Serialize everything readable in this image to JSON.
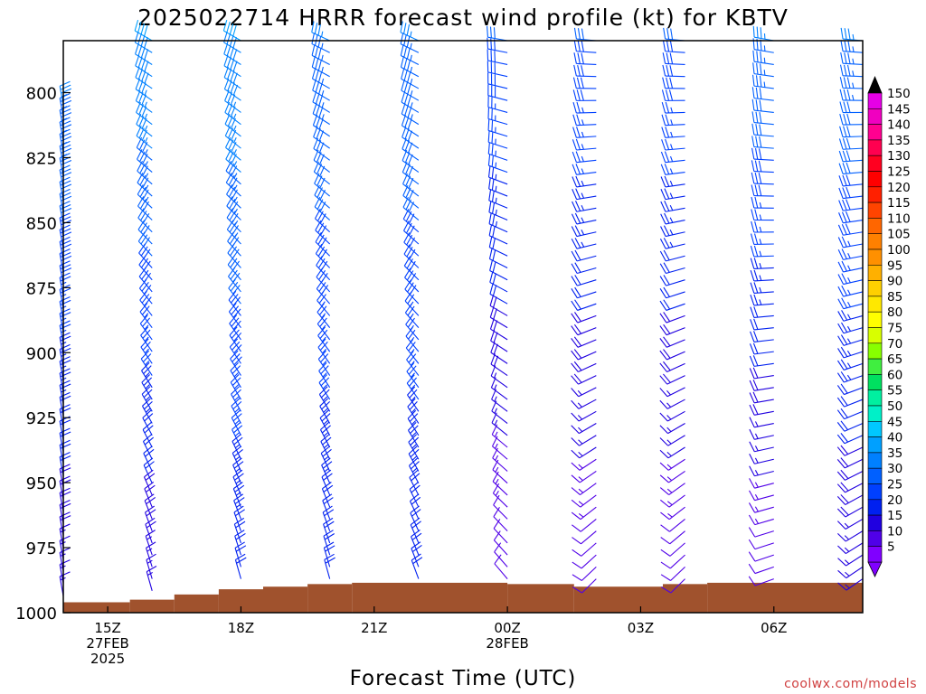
{
  "chart_data": {
    "type": "wind_barb_profile",
    "title": "2025022714 HRRR forecast wind profile (kt) for KBTV",
    "xlabel": "Forecast Time (UTC)",
    "ylabel": "",
    "credit": "coolwx.com/models",
    "y_axis": {
      "min": 780,
      "max": 1000,
      "ticks": [
        800,
        825,
        850,
        875,
        900,
        925,
        950,
        975,
        1000
      ],
      "reversed": true
    },
    "x_axis": {
      "start_hour": 14,
      "end_hour": 32,
      "ticks": [
        {
          "hour": 15,
          "lines": [
            "15Z",
            "27FEB",
            "2025"
          ]
        },
        {
          "hour": 18,
          "lines": [
            "18Z"
          ]
        },
        {
          "hour": 21,
          "lines": [
            "21Z"
          ]
        },
        {
          "hour": 24,
          "lines": [
            "00Z",
            "28FEB"
          ]
        },
        {
          "hour": 27,
          "lines": [
            "03Z"
          ]
        },
        {
          "hour": 30,
          "lines": [
            "06Z"
          ]
        }
      ]
    },
    "colorbar": {
      "labels": [
        150,
        145,
        140,
        135,
        130,
        125,
        120,
        115,
        110,
        105,
        100,
        95,
        90,
        85,
        80,
        75,
        70,
        65,
        60,
        55,
        50,
        45,
        40,
        35,
        30,
        25,
        20,
        15,
        10,
        5
      ],
      "colors": [
        "#e600e6",
        "#f000c0",
        "#ff0090",
        "#ff0050",
        "#ff0020",
        "#ff0000",
        "#ff2000",
        "#ff4400",
        "#ff6600",
        "#ff8000",
        "#ff9000",
        "#ffb000",
        "#ffd000",
        "#ffe800",
        "#ffff00",
        "#d8ff00",
        "#88ff00",
        "#40ee40",
        "#00e060",
        "#00f0a0",
        "#00f0c8",
        "#00c8ff",
        "#00a0ff",
        "#0080ff",
        "#0060ff",
        "#0040ff",
        "#0020f0",
        "#2000e0",
        "#5000e8",
        "#8000ff"
      ],
      "top_arrow_color": "#000000",
      "bottom_arrow_color": "#8000ff"
    },
    "terrain": {
      "color": "#a0522d",
      "segments": [
        {
          "from_hour": 14.0,
          "to_hour": 15.5,
          "pressure": 996
        },
        {
          "from_hour": 15.5,
          "to_hour": 16.5,
          "pressure": 995
        },
        {
          "from_hour": 16.5,
          "to_hour": 17.5,
          "pressure": 993
        },
        {
          "from_hour": 17.5,
          "to_hour": 18.5,
          "pressure": 991
        },
        {
          "from_hour": 18.5,
          "to_hour": 19.5,
          "pressure": 990
        },
        {
          "from_hour": 19.5,
          "to_hour": 20.5,
          "pressure": 989
        },
        {
          "from_hour": 20.5,
          "to_hour": 24.0,
          "pressure": 988.5
        },
        {
          "from_hour": 24.0,
          "to_hour": 25.5,
          "pressure": 989
        },
        {
          "from_hour": 25.5,
          "to_hour": 27.5,
          "pressure": 990
        },
        {
          "from_hour": 27.5,
          "to_hour": 28.5,
          "pressure": 989
        },
        {
          "from_hour": 28.5,
          "to_hour": 32.0,
          "pressure": 988.5
        }
      ]
    },
    "series": [
      {
        "hour": 14,
        "top": 805,
        "bottom": 996,
        "speed_top": 35,
        "speed_bottom": 15,
        "dir_top": 350,
        "dir_bottom": 350
      },
      {
        "hour": 16,
        "top": 780,
        "bottom": 995,
        "speed_top": 40,
        "speed_bottom": 15,
        "dir_top": 300,
        "dir_bottom": 345
      },
      {
        "hour": 18,
        "top": 780,
        "bottom": 991,
        "speed_top": 40,
        "speed_bottom": 20,
        "dir_top": 300,
        "dir_bottom": 345
      },
      {
        "hour": 20,
        "top": 780,
        "bottom": 989,
        "speed_top": 35,
        "speed_bottom": 20,
        "dir_top": 295,
        "dir_bottom": 345
      },
      {
        "hour": 22,
        "top": 780,
        "bottom": 988.5,
        "speed_top": 35,
        "speed_bottom": 20,
        "dir_top": 295,
        "dir_bottom": 340
      },
      {
        "hour": 24,
        "top": 780,
        "bottom": 988.5,
        "speed_top": 30,
        "speed_bottom": 10,
        "dir_top": 280,
        "dir_bottom": 320
      },
      {
        "hour": 26,
        "top": 780,
        "bottom": 989,
        "speed_top": 30,
        "speed_bottom": 10,
        "dir_top": 275,
        "dir_bottom": 225
      },
      {
        "hour": 28,
        "top": 780,
        "bottom": 989,
        "speed_top": 30,
        "speed_bottom": 10,
        "dir_top": 275,
        "dir_bottom": 225
      },
      {
        "hour": 30,
        "top": 780,
        "bottom": 988.5,
        "speed_top": 35,
        "speed_bottom": 10,
        "dir_top": 280,
        "dir_bottom": 250
      },
      {
        "hour": 32,
        "top": 780,
        "bottom": 988.5,
        "speed_top": 35,
        "speed_bottom": 15,
        "dir_top": 275,
        "dir_bottom": 235
      }
    ]
  }
}
